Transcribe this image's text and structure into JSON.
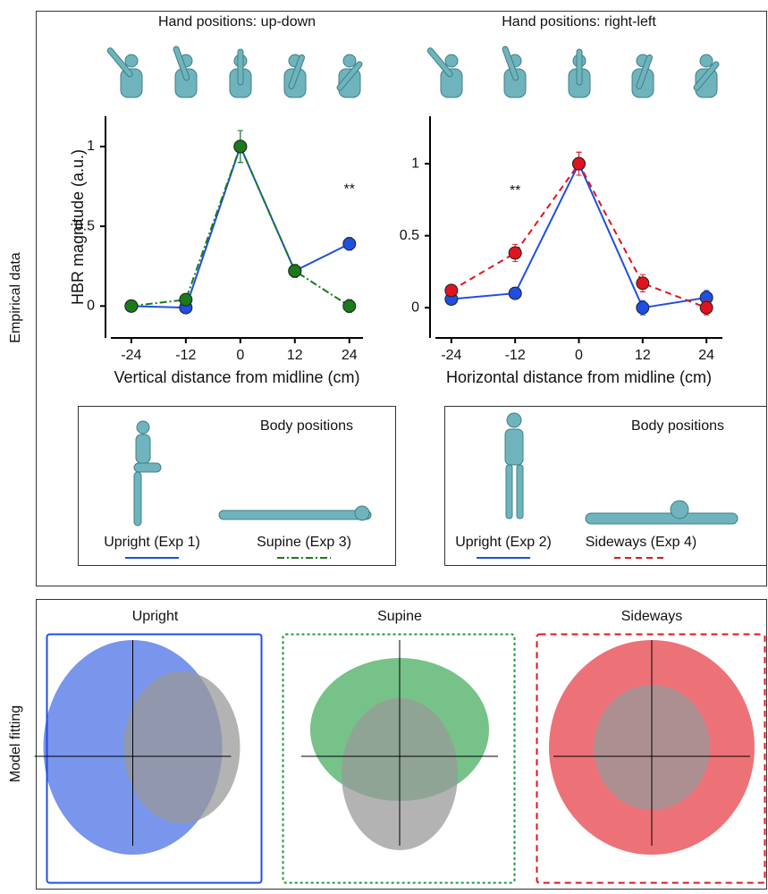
{
  "side_labels": {
    "top": "Empirical data",
    "bottom": "Model fitting"
  },
  "chart_data": [
    {
      "type": "line",
      "title": "Hand positions: up-down",
      "xlabel": "Vertical distance from midline (cm)",
      "ylabel": "HBR magnitude (a.u.)",
      "x": [
        -24,
        -12,
        0,
        12,
        24
      ],
      "xlim": [
        -28.5,
        27
      ],
      "ylim": [
        -0.2,
        1.19
      ],
      "xticks": [
        -24,
        -12,
        0,
        12,
        24
      ],
      "yticks": [
        0,
        0.5,
        1
      ],
      "legend_title": "Body positions",
      "series": [
        {
          "name": "Upright (Exp 1)",
          "color": "#1f4fe0",
          "dash": "solid",
          "values": [
            0.0,
            -0.01,
            1.0,
            0.22,
            0.39
          ],
          "errors": [
            0.03,
            0.03,
            0.1,
            0.04,
            0.04
          ]
        },
        {
          "name": "Supine (Exp 3)",
          "color": "#1a7a1a",
          "dash": "dashdot",
          "values": [
            0.0,
            0.04,
            1.0,
            0.22,
            0.0
          ],
          "errors": [
            0.03,
            0.03,
            0.1,
            0.04,
            0.04
          ]
        }
      ],
      "annotations": [
        {
          "text": "**",
          "x": 24,
          "y": 0.73
        }
      ]
    },
    {
      "type": "line",
      "title": "Hand positions: right-left",
      "xlabel": "Horizontal distance from midline (cm)",
      "x": [
        -24,
        -12,
        0,
        12,
        24
      ],
      "xlim": [
        -27,
        27
      ],
      "ylim": [
        -0.21,
        1.33
      ],
      "xticks": [
        -24,
        -12,
        0,
        12,
        24
      ],
      "yticks": [
        0,
        0.5,
        1
      ],
      "legend_title": "Body positions",
      "series": [
        {
          "name": "Upright (Exp 2)",
          "color": "#1f4fe0",
          "dash": "solid",
          "values": [
            0.06,
            0.1,
            1.0,
            0.0,
            0.07
          ],
          "errors": [
            0.03,
            0.03,
            0.08,
            0.05,
            0.05
          ]
        },
        {
          "name": "Sideways (Exp 4)",
          "color": "#e0141e",
          "dash": "dashed",
          "values": [
            0.12,
            0.38,
            1.0,
            0.17,
            0.0
          ],
          "errors": [
            0.04,
            0.06,
            0.08,
            0.06,
            0.05
          ]
        }
      ],
      "annotations": [
        {
          "text": "**",
          "x": -12,
          "y": 0.81
        }
      ]
    }
  ],
  "model_panels": [
    {
      "title": "Upright",
      "color": "#1f4fe0",
      "dash": "solid"
    },
    {
      "title": "Supine",
      "color": "#1a9a3a",
      "dash": "dotted"
    },
    {
      "title": "Sideways",
      "color": "#e0141e",
      "dash": "dashed"
    }
  ]
}
